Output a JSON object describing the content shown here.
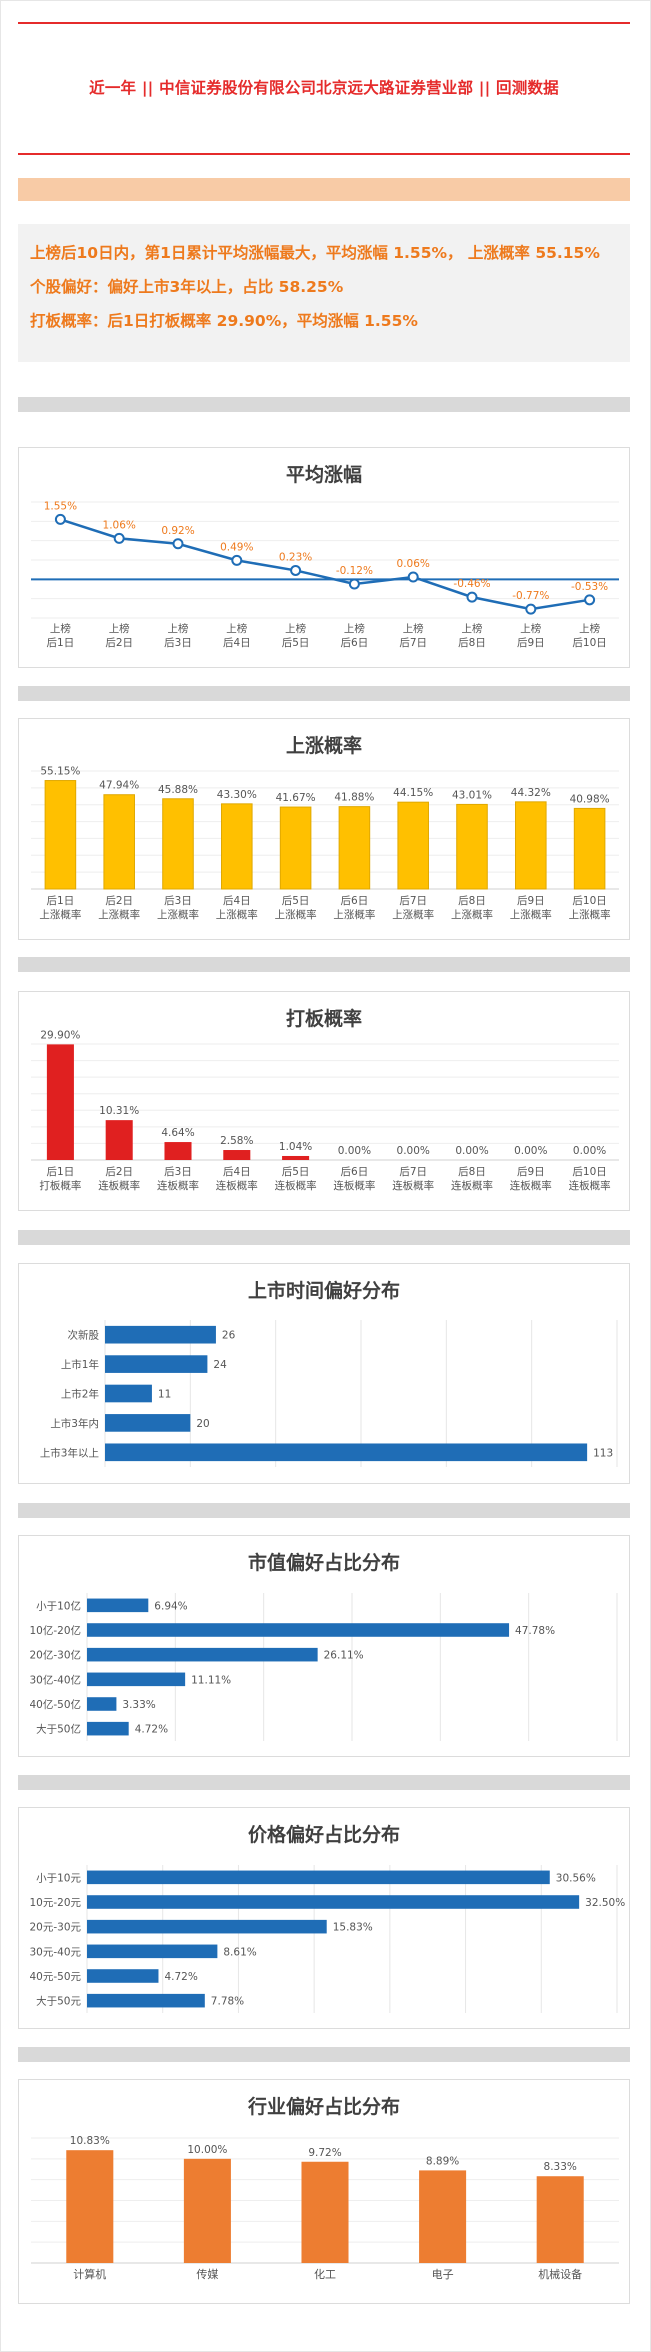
{
  "header": {
    "title": "近一年  ||  中信证券股份有限公司北京远大路证券营业部  ||  回测数据"
  },
  "summary": {
    "line1": "上榜后10日内，第1日累计平均涨幅最大，平均涨幅 1.55%， 上涨概率 55.15%",
    "line2": "个股偏好：偏好上市3年以上，占比 58.25%",
    "line3": "打板概率：后1日打板概率 29.90%，平均涨幅 1.55%"
  },
  "colors": {
    "accent_red": "#e52b2b",
    "summary_orange": "#ee7a1d",
    "line_blue": "#1f6db6",
    "bar_yellow": "#ffc000",
    "bar_red": "#e02020",
    "bar_blue": "#1f6db6",
    "bar_orange": "#ed7d31"
  },
  "chart_data": [
    {
      "type": "line",
      "title": "平均涨幅",
      "categories": [
        "上榜\n后1日",
        "上榜\n后2日",
        "上榜\n后3日",
        "上榜\n后4日",
        "上榜\n后5日",
        "上榜\n后6日",
        "上榜\n后7日",
        "上榜\n后8日",
        "上榜\n后9日",
        "上榜\n后10日"
      ],
      "values": [
        1.55,
        1.06,
        0.92,
        0.49,
        0.23,
        -0.12,
        0.06,
        -0.46,
        -0.77,
        -0.53
      ],
      "value_labels": [
        "1.55%",
        "1.06%",
        "0.92%",
        "0.49%",
        "0.23%",
        "-0.12%",
        "0.06%",
        "-0.46%",
        "-0.77%",
        "-0.53%"
      ],
      "ylim": [
        -1.0,
        2.0
      ],
      "grid": true
    },
    {
      "type": "bar",
      "title": "上涨概率",
      "categories": [
        "后1日\n上涨概率",
        "后2日\n上涨概率",
        "后3日\n上涨概率",
        "后4日\n上涨概率",
        "后5日\n上涨概率",
        "后6日\n上涨概率",
        "后7日\n上涨概率",
        "后8日\n上涨概率",
        "后9日\n上涨概率",
        "后10日\n上涨概率"
      ],
      "values": [
        55.15,
        47.94,
        45.88,
        43.3,
        41.67,
        41.88,
        44.15,
        43.01,
        44.32,
        40.98
      ],
      "value_labels": [
        "55.15%",
        "47.94%",
        "45.88%",
        "43.30%",
        "41.67%",
        "41.88%",
        "44.15%",
        "43.01%",
        "44.32%",
        "40.98%"
      ],
      "ylim": [
        0,
        60
      ],
      "grid": true
    },
    {
      "type": "bar",
      "title": "打板概率",
      "categories": [
        "后1日\n打板概率",
        "后2日\n连板概率",
        "后3日\n连板概率",
        "后4日\n连板概率",
        "后5日\n连板概率",
        "后6日\n连板概率",
        "后7日\n连板概率",
        "后8日\n连板概率",
        "后9日\n连板概率",
        "后10日\n连板概率"
      ],
      "values": [
        29.9,
        10.31,
        4.64,
        2.58,
        1.04,
        0,
        0,
        0,
        0,
        0
      ],
      "value_labels": [
        "29.90%",
        "10.31%",
        "4.64%",
        "2.58%",
        "1.04%",
        "0.00%",
        "0.00%",
        "0.00%",
        "0.00%",
        "0.00%"
      ],
      "ylim": [
        0,
        30
      ],
      "grid": true
    },
    {
      "type": "bar",
      "orientation": "horizontal",
      "title": "上市时间偏好分布",
      "categories": [
        "次新股",
        "上市1年",
        "上市2年",
        "上市3年内",
        "上市3年以上"
      ],
      "values": [
        26,
        24,
        11,
        20,
        113
      ],
      "value_labels": [
        "26",
        "24",
        "11",
        "20",
        "113"
      ],
      "xlim": [
        0,
        120
      ],
      "grid": true
    },
    {
      "type": "bar",
      "orientation": "horizontal",
      "title": "市值偏好占比分布",
      "categories": [
        "小于10亿",
        "10亿-20亿",
        "20亿-30亿",
        "30亿-40亿",
        "40亿-50亿",
        "大于50亿"
      ],
      "values": [
        6.94,
        47.78,
        26.11,
        11.11,
        3.33,
        4.72
      ],
      "value_labels": [
        "6.94%",
        "47.78%",
        "26.11%",
        "11.11%",
        "3.33%",
        "4.72%"
      ],
      "xlim": [
        0,
        60
      ],
      "grid": true
    },
    {
      "type": "bar",
      "orientation": "horizontal",
      "title": "价格偏好占比分布",
      "categories": [
        "小于10元",
        "10元-20元",
        "20元-30元",
        "30元-40元",
        "40元-50元",
        "大于50元"
      ],
      "values": [
        30.56,
        32.5,
        15.83,
        8.61,
        4.72,
        7.78
      ],
      "value_labels": [
        "30.56%",
        "32.50%",
        "15.83%",
        "8.61%",
        "4.72%",
        "7.78%"
      ],
      "xlim": [
        0,
        35
      ],
      "grid": true
    },
    {
      "type": "bar",
      "title": "行业偏好占比分布",
      "categories": [
        "计算机",
        "传媒",
        "化工",
        "电子",
        "机械设备"
      ],
      "values": [
        10.83,
        10.0,
        9.72,
        8.89,
        8.33
      ],
      "value_labels": [
        "10.83%",
        "10.00%",
        "9.72%",
        "8.89%",
        "8.33%"
      ],
      "ylim": [
        0,
        12
      ],
      "grid": true
    }
  ]
}
